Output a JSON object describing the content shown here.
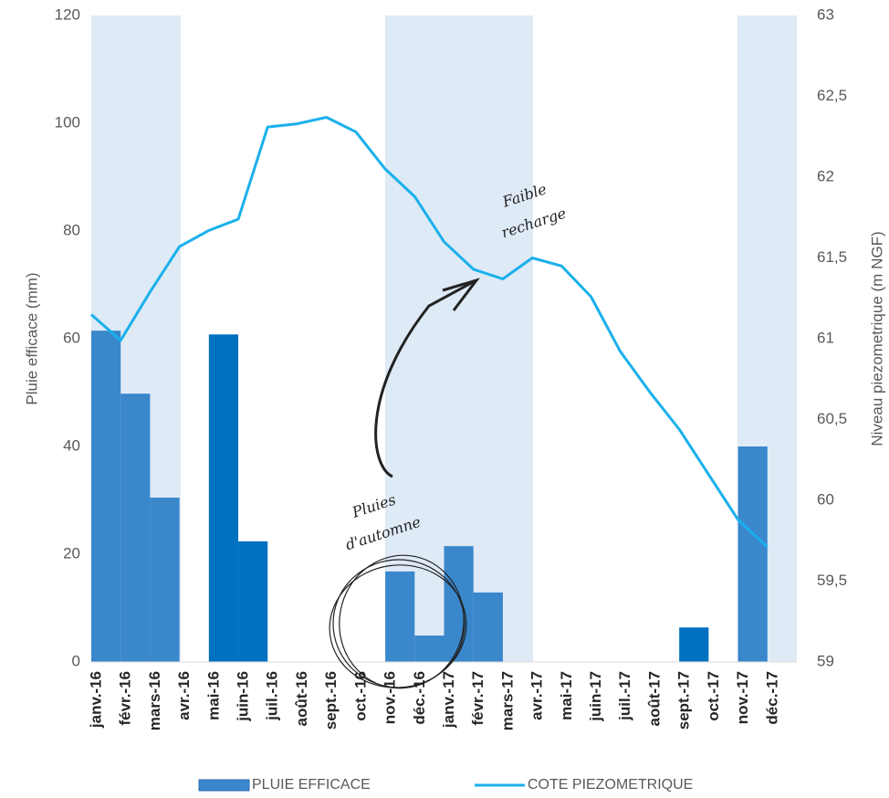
{
  "chart_data": {
    "type": "bar",
    "categories": [
      "janv.-16",
      "févr.-16",
      "mars-16",
      "avr.-16",
      "mai-16",
      "juin-16",
      "juil.-16",
      "août-16",
      "sept.-16",
      "oct.-16",
      "nov.-16",
      "déc.-16",
      "janv.-17",
      "févr.-17",
      "mars-17",
      "avr.-17",
      "mai-17",
      "juin-17",
      "juil.-17",
      "août-17",
      "sept.-17",
      "oct.-17",
      "nov.-17",
      "déc.-17"
    ],
    "series": [
      {
        "name": "PLUIE EFFICACE",
        "type": "bar",
        "color": "#3a87cc",
        "colors": [
          "#3a87cc",
          "#3a87cc",
          "#3a87cc",
          "#3a87cc",
          "#0070c0",
          "#0070c0",
          "#3a87cc",
          "#3a87cc",
          "#3a87cc",
          "#3a87cc",
          "#3a87cc",
          "#3a87cc",
          "#3a87cc",
          "#3a87cc",
          "#3a87cc",
          "#3a87cc",
          "#3a87cc",
          "#3a87cc",
          "#3a87cc",
          "#3a87cc",
          "#0070c0",
          "#3a87cc",
          "#3a87cc",
          "#3a87cc"
        ],
        "values": [
          61.5,
          49.8,
          30.5,
          0,
          60.8,
          22.4,
          0,
          0,
          0,
          0,
          16.8,
          4.9,
          21.5,
          12.9,
          0,
          0,
          0,
          0,
          0,
          0,
          6.4,
          0,
          40,
          0
        ]
      },
      {
        "name": "COTE PIEZOMETRIQUE",
        "type": "line",
        "axis": "y2",
        "color": "#1ab0ec",
        "values": [
          61.15,
          60.99,
          61.29,
          61.57,
          61.67,
          61.74,
          62.31,
          62.33,
          62.37,
          62.28,
          62.05,
          61.88,
          61.6,
          61.43,
          61.37,
          61.5,
          61.45,
          61.26,
          60.92,
          60.67,
          60.44,
          60.16,
          59.88,
          59.71
        ]
      }
    ],
    "ylabel": "Pluie efficace (mm)",
    "y2label": "Niveau piezometrique (m NGF)",
    "ylim": [
      0,
      120
    ],
    "yticks": [
      0,
      20,
      40,
      60,
      80,
      100,
      120
    ],
    "y2lim": [
      59,
      63
    ],
    "y2ticks": [
      59,
      {
        "value": 59.5,
        "label": "59,5"
      },
      60,
      {
        "value": 60.5,
        "label": "60,5"
      },
      61,
      {
        "value": 61.5,
        "label": "61,5"
      },
      62,
      {
        "value": 62.5,
        "label": "62,5"
      },
      63
    ],
    "annotations": [
      "Faible",
      "recharge",
      "Pluies",
      "d'automne"
    ],
    "legend": "bottom"
  }
}
